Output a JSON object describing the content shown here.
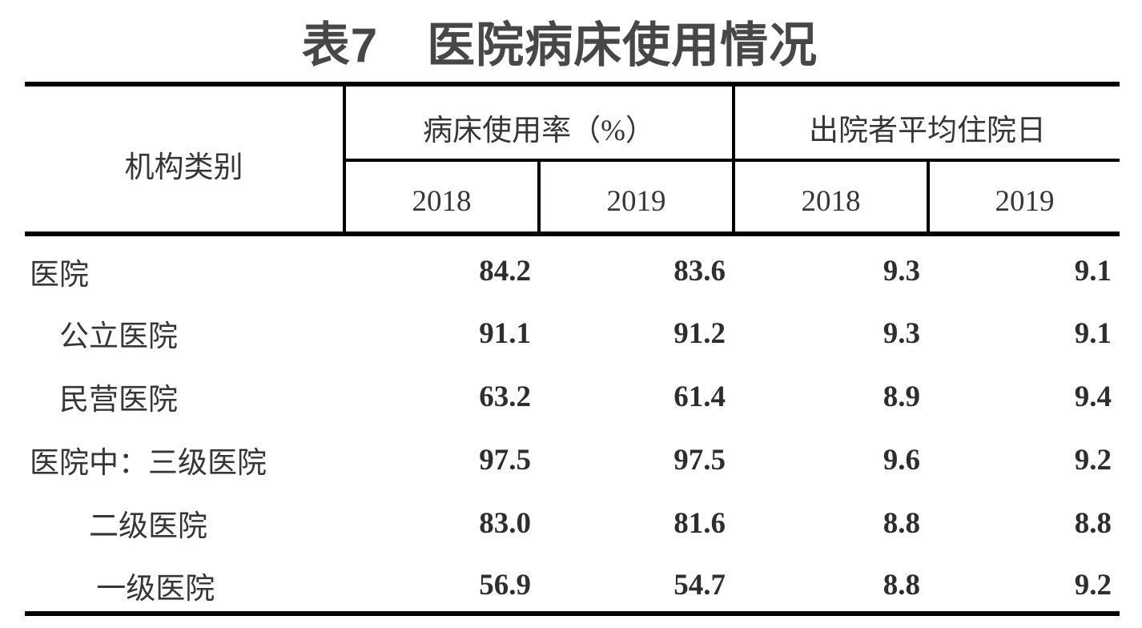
{
  "page": {
    "title": "表7　医院病床使用情况"
  },
  "table": {
    "stub_header": "机构类别",
    "groups": [
      {
        "label": "病床使用率（%）",
        "cols": [
          "2018",
          "2019"
        ]
      },
      {
        "label": "出院者平均住院日",
        "cols": [
          "2018",
          "2019"
        ]
      }
    ],
    "rows": [
      {
        "label": "医院",
        "values": [
          "84.2",
          "83.6",
          "9.3",
          "9.1"
        ]
      },
      {
        "label": "　公立医院",
        "values": [
          "91.1",
          "91.2",
          "9.3",
          "9.1"
        ]
      },
      {
        "label": "　民营医院",
        "values": [
          "63.2",
          "61.4",
          "8.9",
          "9.4"
        ]
      },
      {
        "label": "医院中：三级医院",
        "values": [
          "97.5",
          "97.5",
          "9.6",
          "9.2"
        ]
      },
      {
        "label": "　　二级医院",
        "values": [
          "83.0",
          "81.6",
          "8.8",
          "8.8"
        ]
      },
      {
        "label": "　　 一级医院",
        "values": [
          "56.9",
          "54.7",
          "8.8",
          "9.2"
        ]
      }
    ]
  },
  "colors": {
    "title_text": "#474747",
    "body_text": "#363636",
    "number_text": "#2e2e2e",
    "rule": "#000000",
    "background": "#ffffff"
  }
}
